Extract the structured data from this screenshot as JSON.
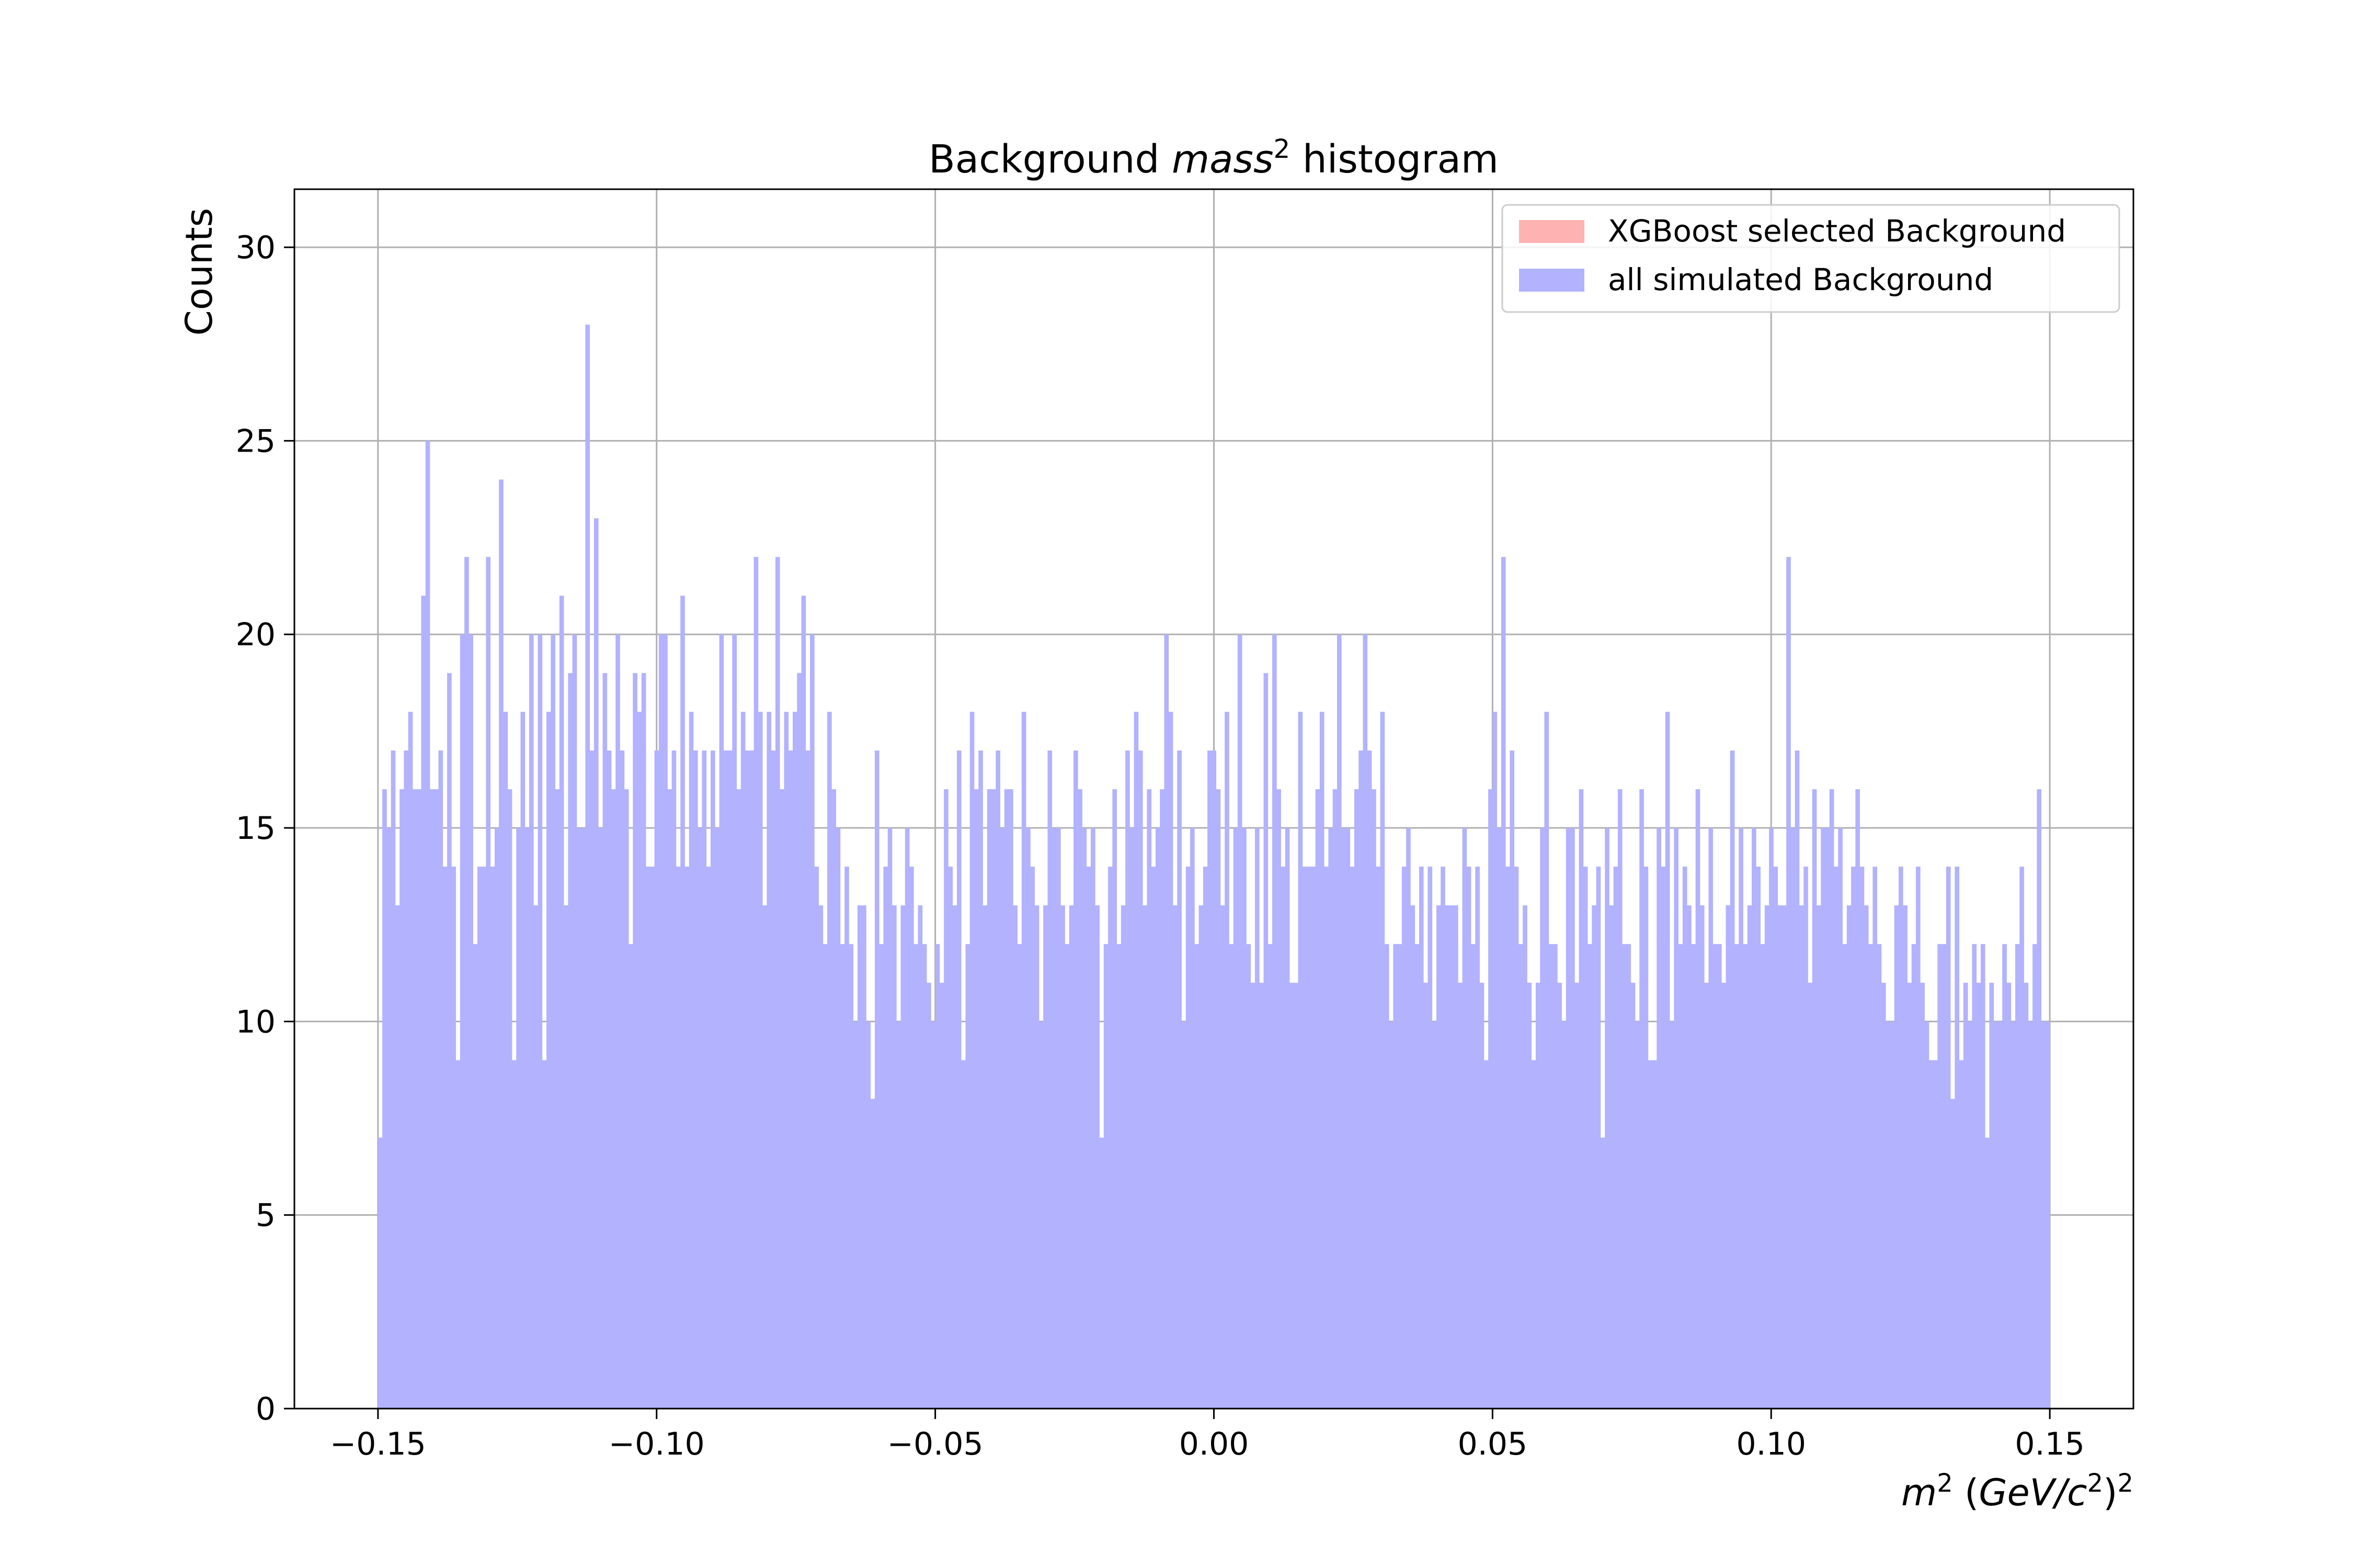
{
  "chart_data": {
    "type": "bar",
    "title": {
      "prefix": "Background ",
      "italic": "mass",
      "superscript": "2",
      "suffix": " histogram"
    },
    "xlabel": {
      "m": "m",
      "m_sup": "2",
      "open": " (",
      "gev": "GeV/c",
      "c_sup": "2",
      "close": ")",
      "outer_sup": "2"
    },
    "ylabel": "Counts",
    "xlim": [
      -0.165,
      0.165
    ],
    "ylim": [
      0,
      31.5
    ],
    "x_ticks": [
      -0.15,
      -0.1,
      -0.05,
      0.0,
      0.05,
      0.1,
      0.15
    ],
    "x_tick_labels": [
      "−0.15",
      "−0.10",
      "−0.05",
      "0.00",
      "0.05",
      "0.10",
      "0.15"
    ],
    "y_ticks": [
      0,
      5,
      10,
      15,
      20,
      25,
      30
    ],
    "y_tick_labels": [
      "0",
      "5",
      "10",
      "15",
      "20",
      "25",
      "30"
    ],
    "grid": true,
    "legend_position": "top-right",
    "bin_range": [
      -0.15,
      0.15
    ],
    "series": [
      {
        "name": "XGBoost selected Background",
        "color": "#ffb2b2",
        "values": []
      },
      {
        "name": "all simulated Background",
        "color": "#b2b2ff",
        "values": [
          7,
          16,
          15,
          17,
          13,
          16,
          17,
          18,
          16,
          16,
          21,
          25,
          16,
          16,
          17,
          14,
          19,
          14,
          9,
          20,
          22,
          20,
          12,
          14,
          14,
          22,
          14,
          15,
          24,
          18,
          16,
          9,
          15,
          18,
          15,
          20,
          13,
          20,
          9,
          18,
          20,
          16,
          21,
          13,
          19,
          20,
          15,
          15,
          28,
          17,
          23,
          15,
          19,
          17,
          16,
          20,
          17,
          16,
          12,
          19,
          18,
          19,
          14,
          14,
          17,
          20,
          20,
          16,
          17,
          14,
          21,
          14,
          18,
          17,
          15,
          17,
          14,
          17,
          15,
          20,
          17,
          17,
          20,
          16,
          18,
          17,
          17,
          22,
          18,
          13,
          18,
          17,
          22,
          16,
          18,
          17,
          18,
          19,
          21,
          17,
          20,
          14,
          13,
          12,
          18,
          16,
          15,
          12,
          14,
          12,
          10,
          13,
          13,
          10,
          8,
          17,
          12,
          14,
          15,
          13,
          10,
          13,
          15,
          14,
          12,
          13,
          12,
          11,
          10,
          12,
          11,
          16,
          14,
          13,
          17,
          9,
          12,
          18,
          16,
          17,
          13,
          16,
          16,
          17,
          15,
          16,
          16,
          13,
          12,
          18,
          15,
          14,
          13,
          10,
          13,
          17,
          15,
          15,
          13,
          12,
          13,
          17,
          16,
          15,
          14,
          15,
          13,
          7,
          12,
          14,
          16,
          12,
          13,
          17,
          15,
          18,
          17,
          13,
          16,
          14,
          15,
          16,
          20,
          18,
          13,
          17,
          10,
          14,
          15,
          12,
          13,
          14,
          17,
          17,
          16,
          13,
          18,
          12,
          15,
          20,
          15,
          12,
          11,
          15,
          11,
          19,
          12,
          20,
          16,
          14,
          15,
          11,
          11,
          18,
          14,
          14,
          14,
          16,
          18,
          14,
          15,
          16,
          20,
          15,
          15,
          14,
          16,
          17,
          20,
          17,
          16,
          14,
          18,
          12,
          10,
          12,
          12,
          14,
          15,
          13,
          12,
          14,
          11,
          14,
          10,
          13,
          14,
          13,
          13,
          13,
          11,
          15,
          14,
          12,
          14,
          11,
          9,
          16,
          18,
          15,
          22,
          14,
          17,
          14,
          12,
          13,
          11,
          9,
          11,
          15,
          18,
          12,
          12,
          11,
          10,
          15,
          15,
          11,
          16,
          14,
          12,
          13,
          14,
          7,
          15,
          13,
          14,
          16,
          12,
          12,
          11,
          10,
          16,
          14,
          9,
          9,
          15,
          14,
          18,
          10,
          15,
          12,
          14,
          13,
          12,
          16,
          13,
          11,
          15,
          12,
          12,
          11,
          13,
          17,
          12,
          15,
          12,
          13,
          15,
          14,
          12,
          13,
          15,
          14,
          13,
          13,
          22,
          15,
          17,
          13,
          14,
          11,
          16,
          13,
          15,
          15,
          16,
          14,
          15,
          12,
          13,
          14,
          16,
          14,
          13,
          12,
          14,
          12,
          11,
          10,
          10,
          13,
          14,
          13,
          11,
          12,
          14,
          11,
          10,
          9,
          9,
          12,
          12,
          14,
          8,
          14,
          9,
          11,
          10,
          12,
          11,
          12,
          7,
          11,
          10,
          10,
          12,
          11,
          10,
          12,
          14,
          11,
          10,
          12,
          16,
          10,
          10
        ]
      }
    ]
  }
}
